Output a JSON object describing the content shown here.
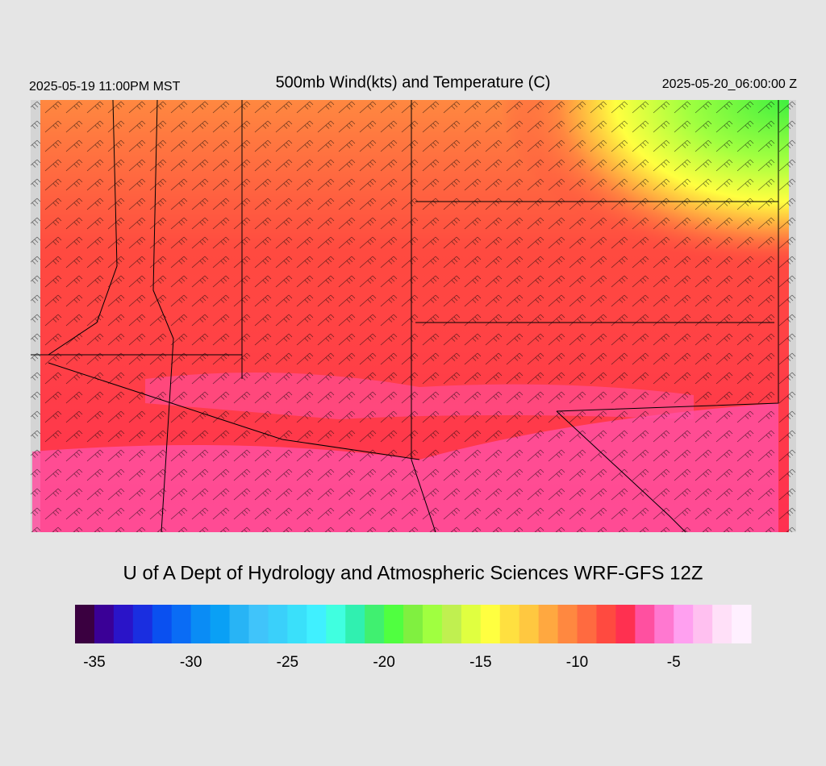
{
  "header": {
    "left": "2025-05-19 11:00PM MST",
    "title": "500mb Wind(kts) and Temperature (C)",
    "right": "2025-05-20_06:00:00 Z"
  },
  "footer": {
    "credit": "U of A Dept of Hydrology and Atmospheric Sciences WRF-GFS 12Z"
  },
  "colorbar": {
    "lim": [
      -36,
      -1
    ],
    "ticks": [
      -35,
      -30,
      -25,
      -20,
      -15,
      -10,
      -5
    ],
    "colors": [
      "#3a0040",
      "#3a0096",
      "#2a14c8",
      "#1a2ee0",
      "#0a50f0",
      "#0a6cf5",
      "#0a8cf5",
      "#0aa0f5",
      "#28b4f5",
      "#40c4fa",
      "#3ad0fa",
      "#3ae0fa",
      "#40f0ff",
      "#40ffe0",
      "#30f0b0",
      "#40f070",
      "#50ff40",
      "#80f040",
      "#a0ff40",
      "#c0f050",
      "#e0ff40",
      "#ffff40",
      "#ffe040",
      "#ffc840",
      "#ffa840",
      "#ff8840",
      "#ff6a40",
      "#ff4a40",
      "#ff3050",
      "#ff50a0",
      "#ff78d0",
      "#ffa0f0",
      "#ffc0f0",
      "#ffe0f8",
      "#fff0ff"
    ]
  }
}
